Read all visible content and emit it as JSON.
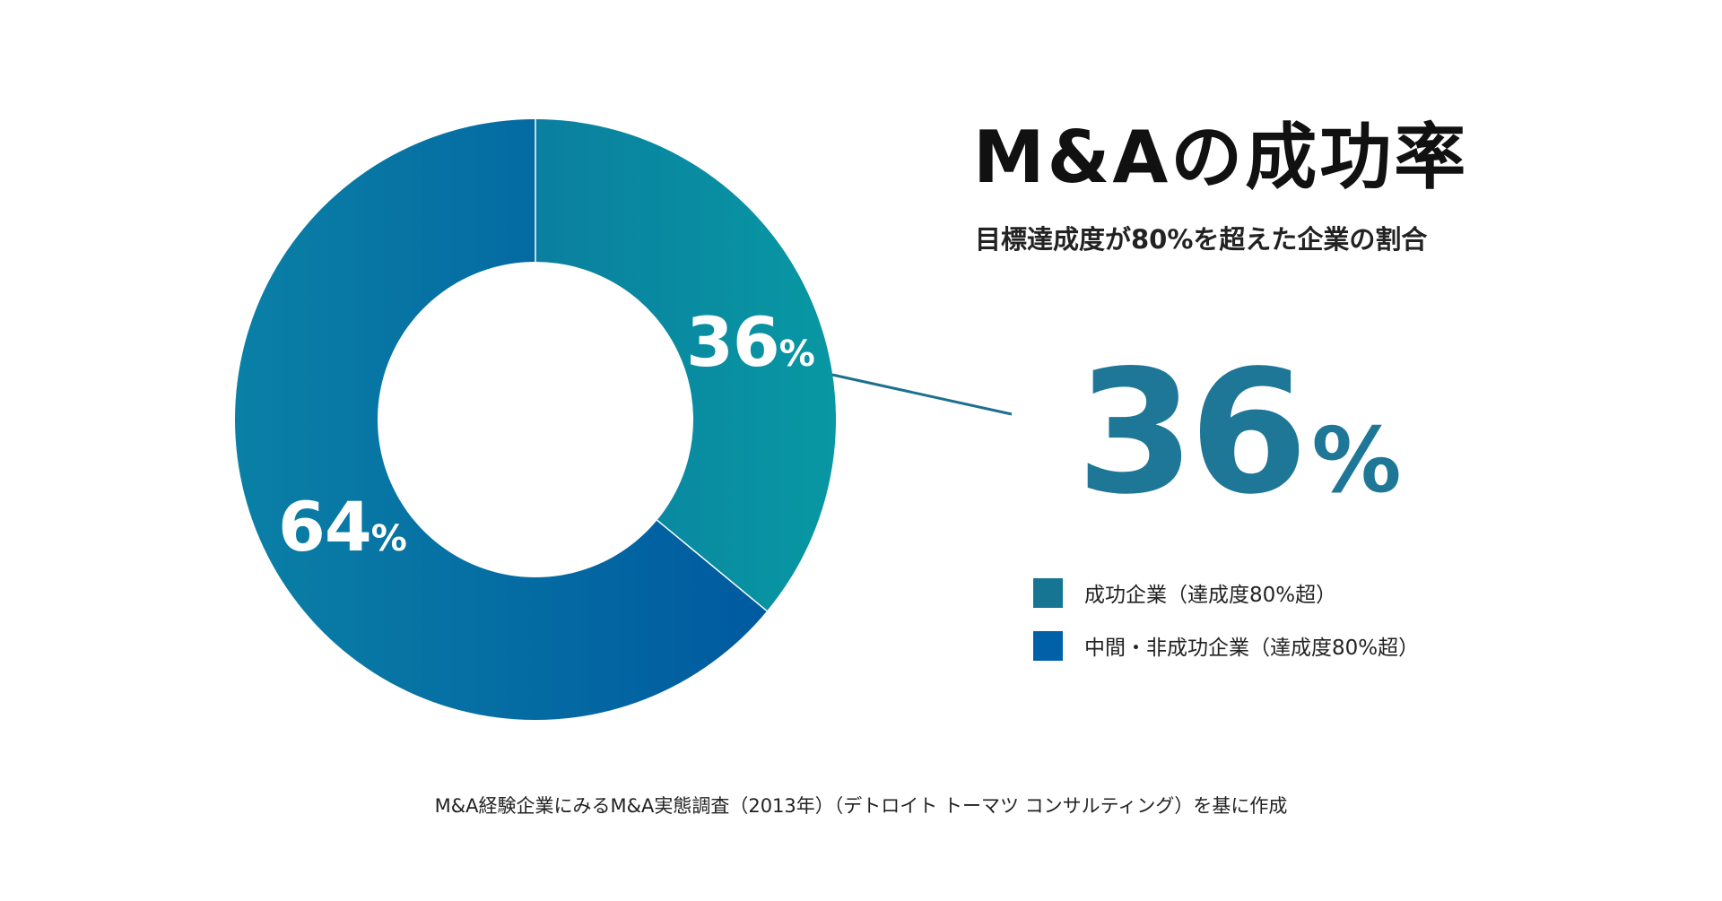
{
  "title": "M&Aの成功率",
  "subtitle": "目標達成度が80%を超えた企業の割合",
  "highlight": {
    "value": "36",
    "unit": "%"
  },
  "source": "M&A経験企業にみるM&A実態調査（2013年）（デトロイト トーマツ コンサルティング）を基に作成",
  "colors": {
    "success_start": "#0a7fa0",
    "success_end": "#0898a2",
    "other_start": "#0a80a6",
    "other_end": "#005aa0",
    "success_swatch": "#167592",
    "other_swatch": "#0060a8",
    "leader_line": "#1d6f8f"
  },
  "chart_data": {
    "type": "pie",
    "style": "donut",
    "slices": [
      {
        "label": "成功企業（達成度80%超）",
        "value": 36,
        "value_label": "36",
        "unit": "%",
        "color_key": "success_swatch"
      },
      {
        "label": "中間・非成功企業（達成度80%超）",
        "value": 64,
        "value_label": "64",
        "unit": "%",
        "color_key": "other_swatch"
      }
    ],
    "legend": [
      "成功企業（達成度80%超）",
      "中間・非成功企業（達成度80%超）"
    ],
    "legend_position": "right"
  }
}
